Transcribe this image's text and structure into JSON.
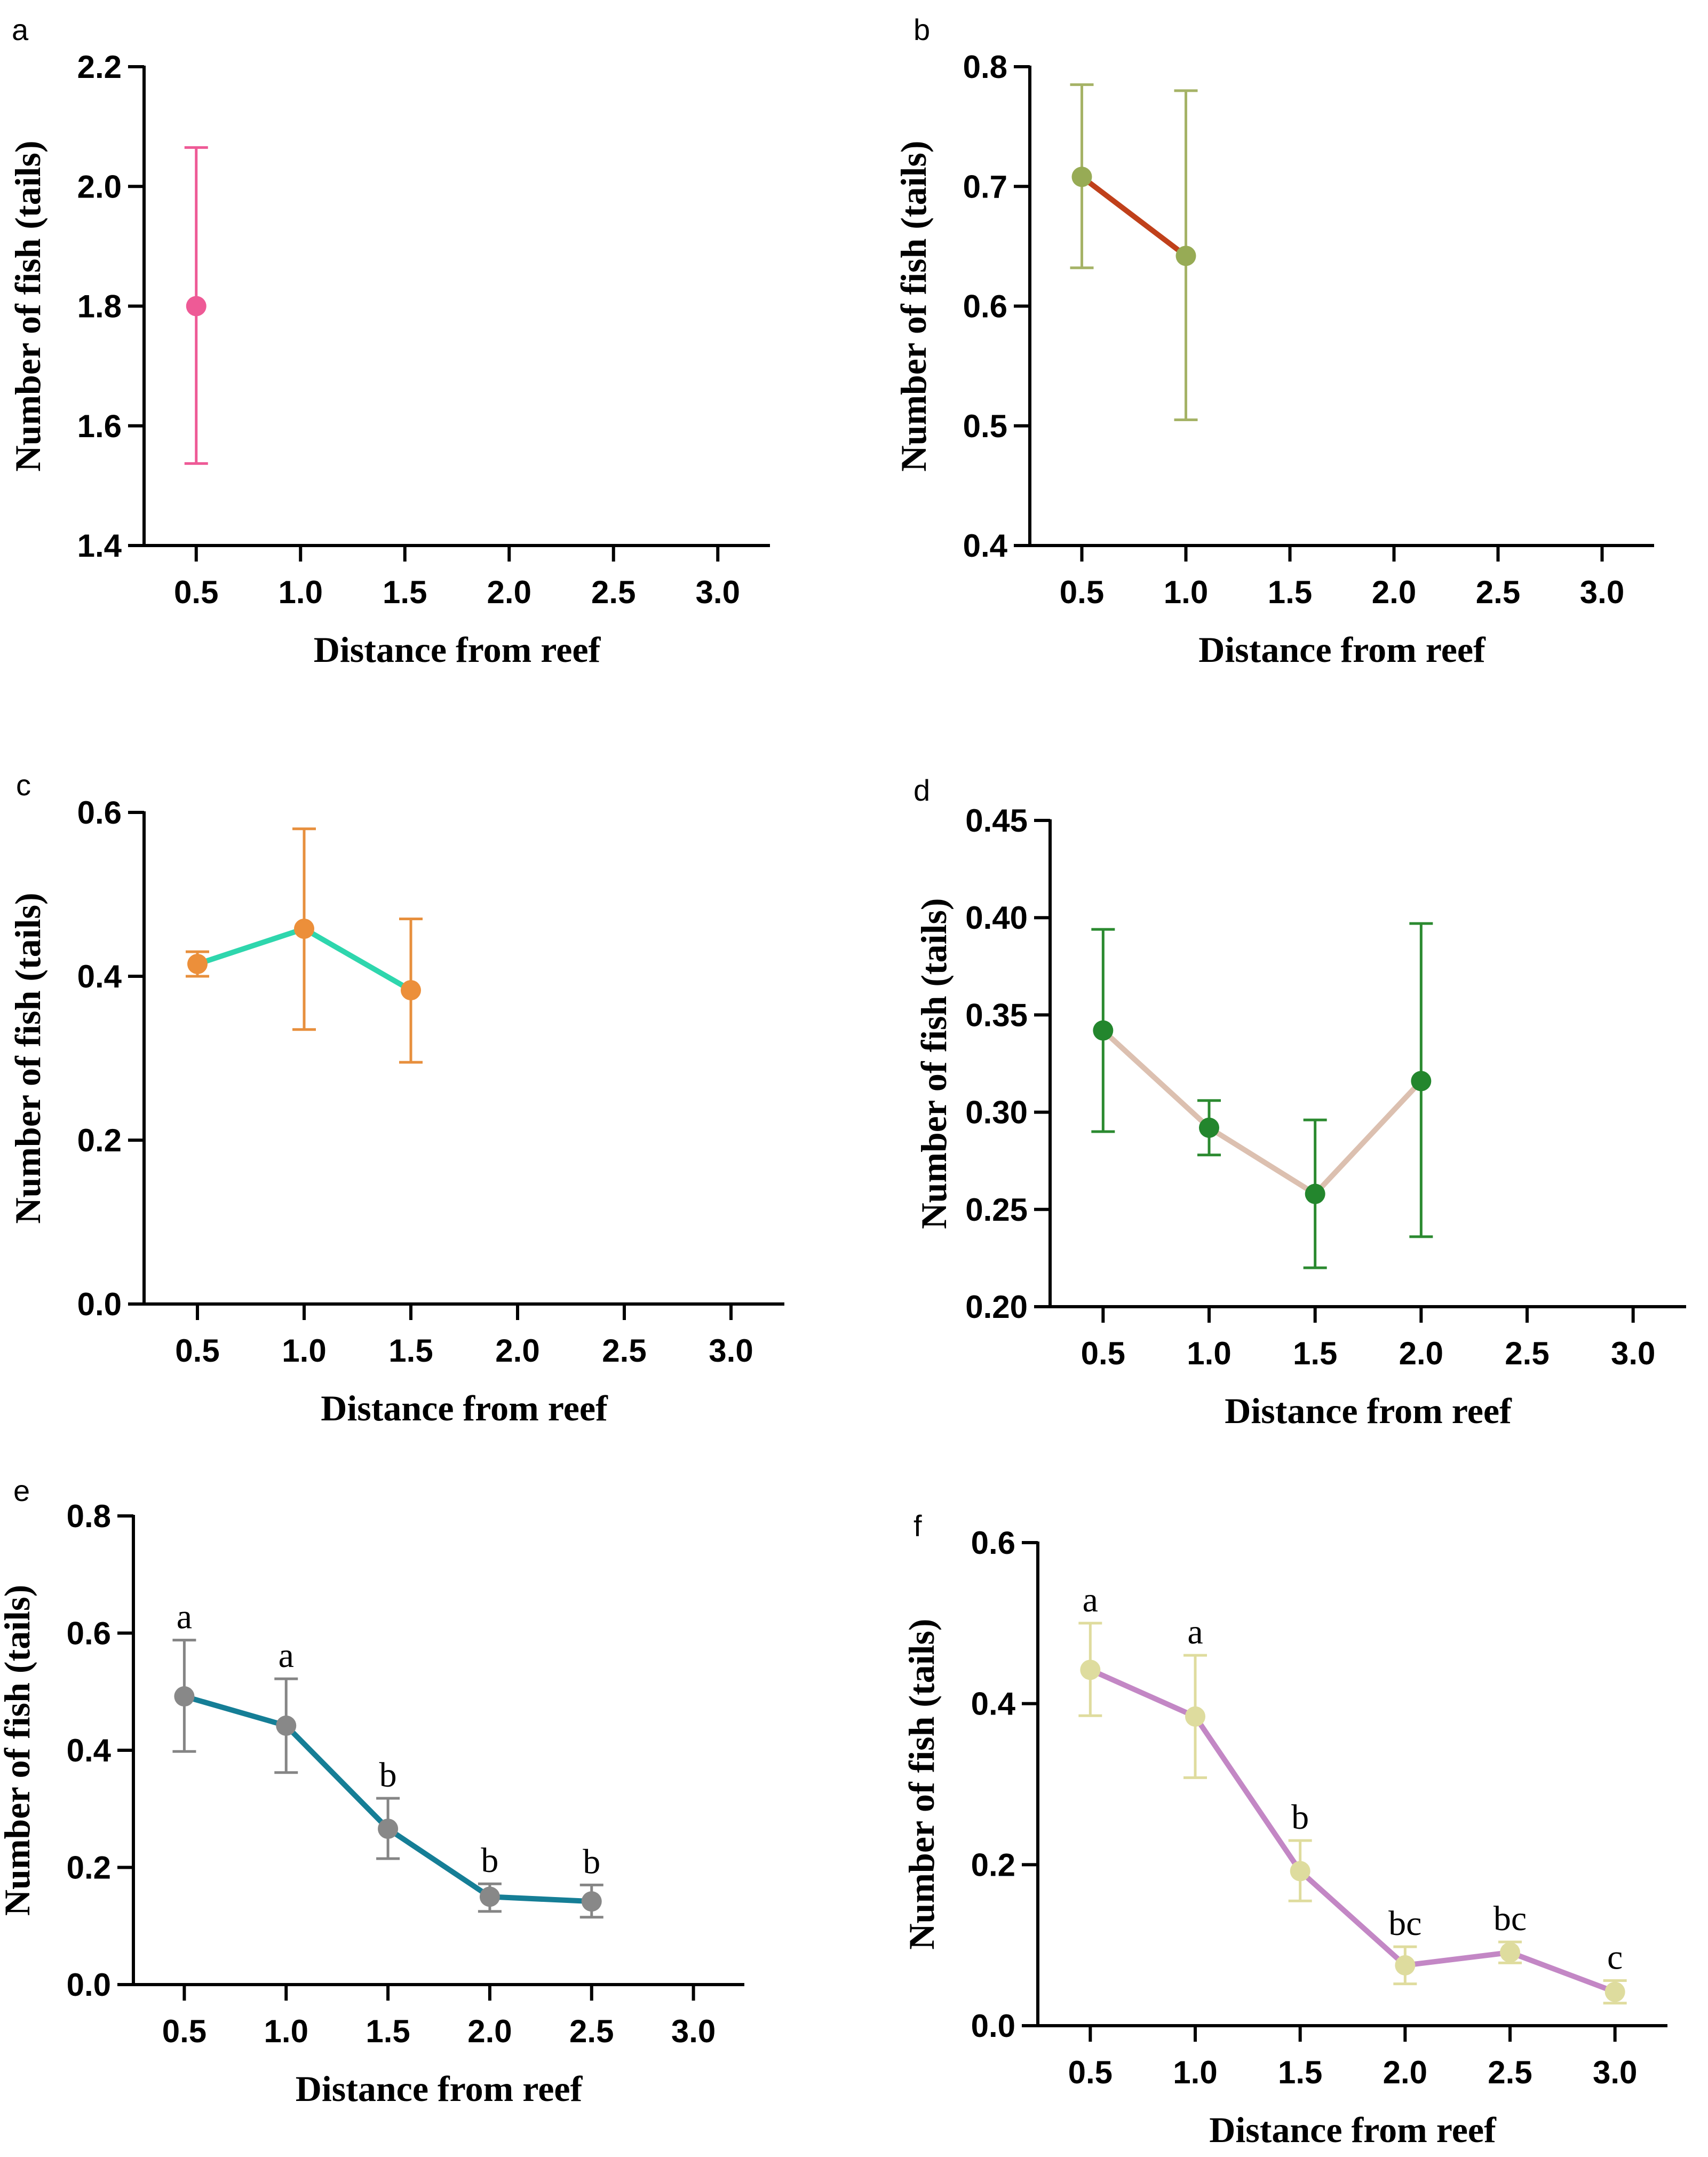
{
  "chart_data": [
    {
      "type": "line",
      "panel": "a",
      "xlabel": "Distance from reef",
      "ylabel": "Number of fish (tails)",
      "xticks": [
        "0.5",
        "1.0",
        "1.5",
        "2.0",
        "2.5",
        "3.0"
      ],
      "yticks": [
        "1.4",
        "1.6",
        "1.8",
        "2.0",
        "2.2"
      ],
      "ylim": [
        1.4,
        2.2
      ],
      "line_color": "#ee5a96",
      "marker_color": "#ee5a96",
      "error_color": "#ee5a96",
      "series": [
        {
          "name": "a",
          "x": [
            0.5
          ],
          "y": [
            1.8
          ],
          "err_low": [
            1.537
          ],
          "err_high": [
            2.065
          ]
        }
      ],
      "annotations": []
    },
    {
      "type": "line",
      "panel": "b",
      "xlabel": "Distance from reef",
      "ylabel": "Number of fish (tails)",
      "xticks": [
        "0.5",
        "1.0",
        "1.5",
        "2.0",
        "2.5",
        "3.0"
      ],
      "yticks": [
        "0.4",
        "0.5",
        "0.6",
        "0.7",
        "0.8"
      ],
      "ylim": [
        0.4,
        0.8
      ],
      "line_color": "#c0401a",
      "marker_color": "#97ab55",
      "error_color": "#a5b366",
      "series": [
        {
          "name": "b",
          "x": [
            0.5,
            1.0
          ],
          "y": [
            0.708,
            0.642
          ],
          "err_low": [
            0.632,
            0.505
          ],
          "err_high": [
            0.785,
            0.78
          ]
        }
      ],
      "annotations": []
    },
    {
      "type": "line",
      "panel": "c",
      "xlabel": "Distance from reef",
      "ylabel": "Number of fish (tails)",
      "xticks": [
        "0.5",
        "1.0",
        "1.5",
        "2.0",
        "2.5",
        "3.0"
      ],
      "yticks": [
        "0.0",
        "0.2",
        "0.4",
        "0.6"
      ],
      "ylim": [
        0.0,
        0.6
      ],
      "line_color": "#2ed6ad",
      "marker_color": "#ec8f3a",
      "error_color": "#e78f3d",
      "series": [
        {
          "name": "c",
          "x": [
            0.5,
            1.0,
            1.5
          ],
          "y": [
            0.415,
            0.458,
            0.383
          ],
          "err_low": [
            0.4,
            0.335,
            0.295
          ],
          "err_high": [
            0.43,
            0.58,
            0.47
          ]
        }
      ],
      "annotations": []
    },
    {
      "type": "line",
      "panel": "d",
      "xlabel": "Distance from reef",
      "ylabel": "Number of fish (tails)",
      "xticks": [
        "0.5",
        "1.0",
        "1.5",
        "2.0",
        "2.5",
        "3.0"
      ],
      "yticks": [
        "0.20",
        "0.25",
        "0.30",
        "0.35",
        "0.40",
        "0.45"
      ],
      "ylim": [
        0.2,
        0.45
      ],
      "line_color": "#dcc0b0",
      "marker_color": "#23862d",
      "error_color": "#2b8a30",
      "series": [
        {
          "name": "d",
          "x": [
            0.5,
            1.0,
            1.5,
            2.0
          ],
          "y": [
            0.342,
            0.292,
            0.258,
            0.316
          ],
          "err_low": [
            0.29,
            0.278,
            0.22,
            0.236
          ],
          "err_high": [
            0.394,
            0.306,
            0.296,
            0.397
          ]
        }
      ],
      "annotations": []
    },
    {
      "type": "line",
      "panel": "e",
      "xlabel": "Distance from reef",
      "ylabel": "Number of fish (tails)",
      "xticks": [
        "0.5",
        "1.0",
        "1.5",
        "2.0",
        "2.5",
        "3.0"
      ],
      "yticks": [
        "0.0",
        "0.2",
        "0.4",
        "0.6",
        "0.8"
      ],
      "ylim": [
        0.0,
        0.8
      ],
      "line_color": "#157e96",
      "marker_color": "#888888",
      "error_color": "#858585",
      "series": [
        {
          "name": "e",
          "x": [
            0.5,
            1.0,
            1.5,
            2.0,
            2.5
          ],
          "y": [
            0.492,
            0.442,
            0.266,
            0.15,
            0.142
          ],
          "err_low": [
            0.398,
            0.362,
            0.215,
            0.125,
            0.115
          ],
          "err_high": [
            0.588,
            0.522,
            0.318,
            0.172,
            0.17
          ]
        }
      ],
      "annotations": [
        "a",
        "a",
        "b",
        "b",
        "b"
      ]
    },
    {
      "type": "line",
      "panel": "f",
      "xlabel": "Distance from reef",
      "ylabel": "Number of fish (tails)",
      "xticks": [
        "0.5",
        "1.0",
        "1.5",
        "2.0",
        "2.5",
        "3.0"
      ],
      "yticks": [
        "0.0",
        "0.2",
        "0.4",
        "0.6"
      ],
      "ylim": [
        0.0,
        0.6
      ],
      "line_color": "#c387c5",
      "marker_color": "#dedc9e",
      "error_color": "#dfdc9e",
      "series": [
        {
          "name": "f",
          "x": [
            0.5,
            1.0,
            1.5,
            2.0,
            2.5,
            3.0
          ],
          "y": [
            0.442,
            0.384,
            0.192,
            0.075,
            0.091,
            0.042
          ],
          "err_low": [
            0.385,
            0.308,
            0.155,
            0.052,
            0.078,
            0.028
          ],
          "err_high": [
            0.5,
            0.46,
            0.23,
            0.098,
            0.104,
            0.056
          ]
        }
      ],
      "annotations": [
        "a",
        "a",
        "b",
        "bc",
        "bc",
        "c"
      ]
    }
  ]
}
